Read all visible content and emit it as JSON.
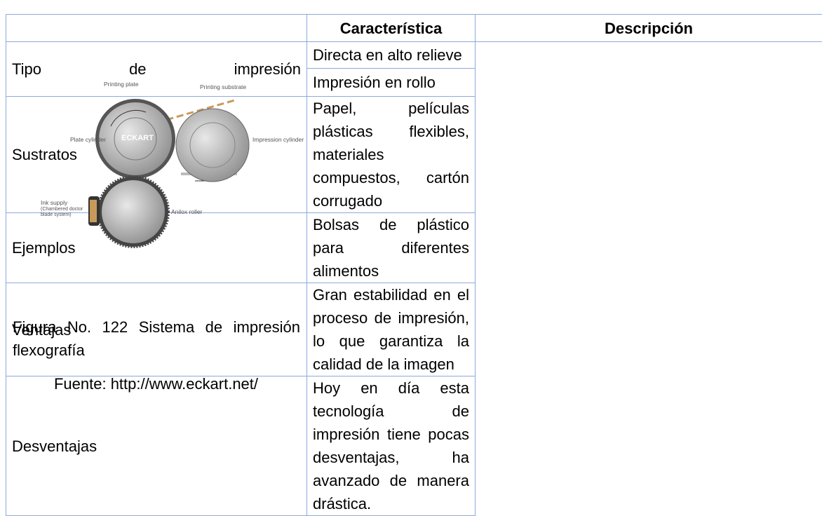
{
  "figure": {
    "labels": {
      "printing_plate": "Printing plate",
      "printing_substrate": "Printing substrate",
      "plate_cylinder": "Plate cylinder",
      "impression_cylinder": "Impression cylinder",
      "ink_supply": [
        "Ink supply",
        "(Chambered doctor",
        "blade system)"
      ],
      "anilox_roller": "Anilox roller",
      "logo": "ECKART"
    },
    "caption": "Figura No. 122 Sistema de impresión flexografía",
    "source": "Fuente: http://www.eckart.net/"
  },
  "table": {
    "header": [
      "Característica",
      "Descripción"
    ],
    "rows": [
      {
        "feature": "Tipo de impresión",
        "descriptions": [
          "Directa en alto relieve",
          "Impresión en rollo"
        ]
      },
      {
        "feature": "Sustratos",
        "descriptions": [
          "Papel, películas plásticas flexibles, materiales compuestos, cartón corrugado"
        ]
      },
      {
        "feature": "Ejemplos",
        "descriptions": [
          "Bolsas de plástico para diferentes alimentos"
        ]
      },
      {
        "feature": "Ventajas",
        "descriptions": [
          "Gran estabilidad en el proceso de impresión, lo que garantiza la calidad de la imagen"
        ]
      },
      {
        "feature": "Desventajas",
        "descriptions": [
          "Hoy en día esta tecnología de impresión tiene pocas desventajas, ha avanzado de manera drástica."
        ]
      }
    ]
  }
}
